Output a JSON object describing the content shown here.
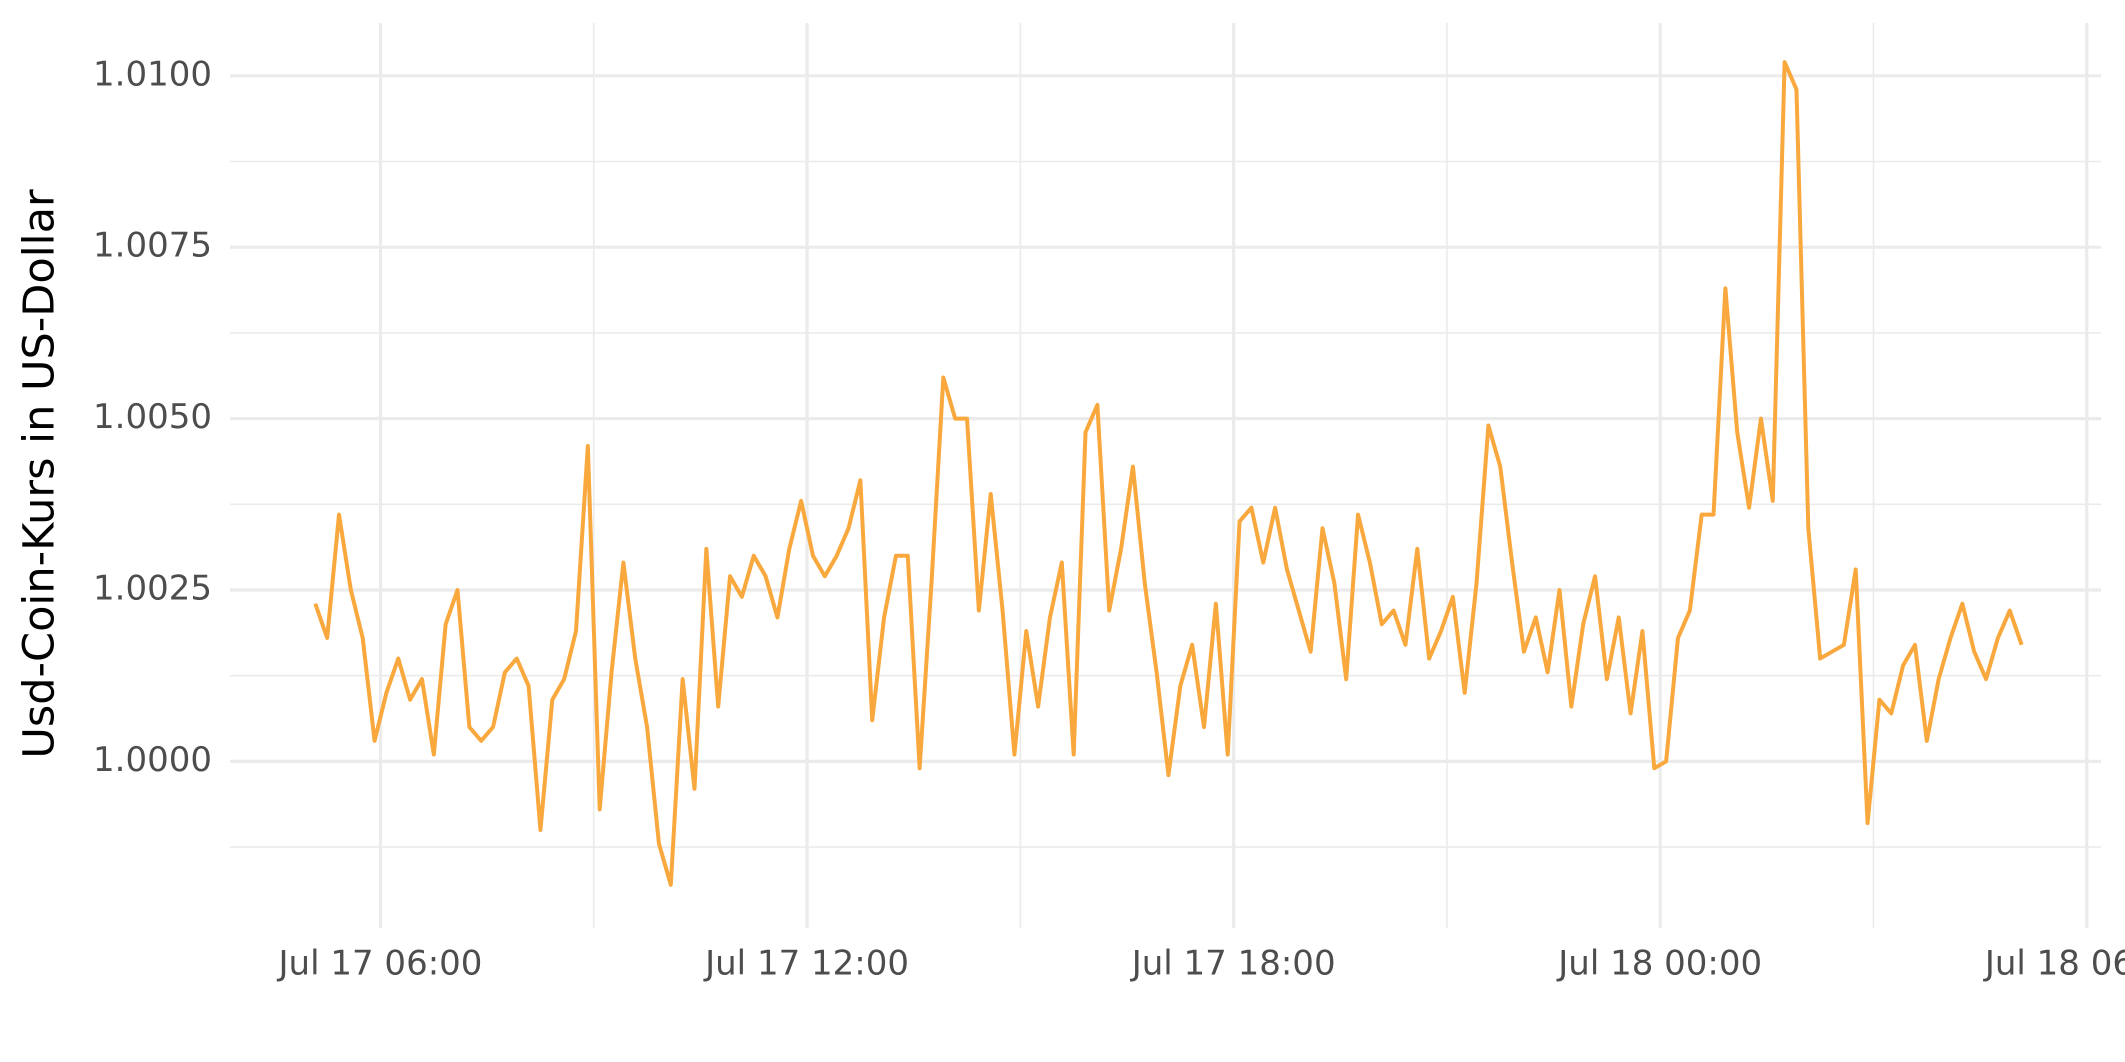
{
  "chart_data": {
    "type": "line",
    "ylabel": "Usd-Coin-Kurs in US-Dollar",
    "x": [
      "Jul 17 05:05",
      "Jul 17 05:15",
      "Jul 17 05:25",
      "Jul 17 05:35",
      "Jul 17 05:45",
      "Jul 17 05:55",
      "Jul 17 06:05",
      "Jul 17 06:15",
      "Jul 17 06:25",
      "Jul 17 06:35",
      "Jul 17 06:45",
      "Jul 17 06:55",
      "Jul 17 07:05",
      "Jul 17 07:15",
      "Jul 17 07:25",
      "Jul 17 07:35",
      "Jul 17 07:45",
      "Jul 17 07:55",
      "Jul 17 08:05",
      "Jul 17 08:15",
      "Jul 17 08:25",
      "Jul 17 08:35",
      "Jul 17 08:45",
      "Jul 17 08:55",
      "Jul 17 09:05",
      "Jul 17 09:15",
      "Jul 17 09:25",
      "Jul 17 09:35",
      "Jul 17 09:45",
      "Jul 17 09:55",
      "Jul 17 10:05",
      "Jul 17 10:15",
      "Jul 17 10:25",
      "Jul 17 10:35",
      "Jul 17 10:45",
      "Jul 17 10:55",
      "Jul 17 11:05",
      "Jul 17 11:15",
      "Jul 17 11:25",
      "Jul 17 11:35",
      "Jul 17 11:45",
      "Jul 17 11:55",
      "Jul 17 12:05",
      "Jul 17 12:15",
      "Jul 17 12:25",
      "Jul 17 12:35",
      "Jul 17 12:45",
      "Jul 17 12:55",
      "Jul 17 13:05",
      "Jul 17 13:15",
      "Jul 17 13:25",
      "Jul 17 13:35",
      "Jul 17 13:45",
      "Jul 17 13:55",
      "Jul 17 14:05",
      "Jul 17 14:15",
      "Jul 17 14:25",
      "Jul 17 14:35",
      "Jul 17 14:45",
      "Jul 17 14:55",
      "Jul 17 15:05",
      "Jul 17 15:15",
      "Jul 17 15:25",
      "Jul 17 15:35",
      "Jul 17 15:45",
      "Jul 17 15:55",
      "Jul 17 16:05",
      "Jul 17 16:15",
      "Jul 17 16:25",
      "Jul 17 16:35",
      "Jul 17 16:45",
      "Jul 17 16:55",
      "Jul 17 17:05",
      "Jul 17 17:15",
      "Jul 17 17:25",
      "Jul 17 17:35",
      "Jul 17 17:45",
      "Jul 17 17:55",
      "Jul 17 18:05",
      "Jul 17 18:15",
      "Jul 17 18:25",
      "Jul 17 18:35",
      "Jul 17 18:45",
      "Jul 17 18:55",
      "Jul 17 19:05",
      "Jul 17 19:15",
      "Jul 17 19:25",
      "Jul 17 19:35",
      "Jul 17 19:45",
      "Jul 17 19:55",
      "Jul 17 20:05",
      "Jul 17 20:15",
      "Jul 17 20:25",
      "Jul 17 20:35",
      "Jul 17 20:45",
      "Jul 17 20:55",
      "Jul 17 21:05",
      "Jul 17 21:15",
      "Jul 17 21:25",
      "Jul 17 21:35",
      "Jul 17 21:45",
      "Jul 17 21:55",
      "Jul 17 22:05",
      "Jul 17 22:15",
      "Jul 17 22:25",
      "Jul 17 22:35",
      "Jul 17 22:45",
      "Jul 17 22:55",
      "Jul 17 23:05",
      "Jul 17 23:15",
      "Jul 17 23:25",
      "Jul 17 23:35",
      "Jul 17 23:45",
      "Jul 17 23:55",
      "Jul 18 00:05",
      "Jul 18 00:15",
      "Jul 18 00:25",
      "Jul 18 00:35",
      "Jul 18 00:45",
      "Jul 18 00:55",
      "Jul 18 01:05",
      "Jul 18 01:15",
      "Jul 18 01:25",
      "Jul 18 01:35",
      "Jul 18 01:45",
      "Jul 18 01:55",
      "Jul 18 02:05",
      "Jul 18 02:15",
      "Jul 18 02:25",
      "Jul 18 02:35",
      "Jul 18 02:45",
      "Jul 18 02:55",
      "Jul 18 03:05",
      "Jul 18 03:15",
      "Jul 18 03:25",
      "Jul 18 03:35",
      "Jul 18 03:45",
      "Jul 18 03:55",
      "Jul 18 04:05",
      "Jul 18 04:15",
      "Jul 18 04:25",
      "Jul 18 04:35",
      "Jul 18 04:45",
      "Jul 18 04:55",
      "Jul 18 05:05"
    ],
    "values": [
      1.0023,
      1.0018,
      1.0036,
      1.0025,
      1.0018,
      1.0003,
      1.001,
      1.0015,
      1.0009,
      1.0012,
      1.0001,
      1.002,
      1.0025,
      1.0005,
      1.0003,
      1.0005,
      1.0013,
      1.0015,
      1.0011,
      0.999,
      1.0009,
      1.0012,
      1.0019,
      1.0046,
      0.9993,
      1.0013,
      1.0029,
      1.0015,
      1.0005,
      0.9988,
      0.9982,
      1.0012,
      0.9996,
      1.0031,
      1.0008,
      1.0027,
      1.0024,
      1.003,
      1.0027,
      1.0021,
      1.0031,
      1.0038,
      1.003,
      1.0027,
      1.003,
      1.0034,
      1.0041,
      1.0006,
      1.0021,
      1.003,
      1.003,
      0.9999,
      1.0026,
      1.0056,
      1.005,
      1.005,
      1.0022,
      1.0039,
      1.0022,
      1.0001,
      1.0019,
      1.0008,
      1.0021,
      1.0029,
      1.0001,
      1.0048,
      1.0052,
      1.0022,
      1.0031,
      1.0043,
      1.0026,
      1.0013,
      0.9998,
      1.0011,
      1.0017,
      1.0005,
      1.0023,
      1.0001,
      1.0035,
      1.0037,
      1.0029,
      1.0037,
      1.0028,
      1.0022,
      1.0016,
      1.0034,
      1.0026,
      1.0012,
      1.0036,
      1.0029,
      1.002,
      1.0022,
      1.0017,
      1.0031,
      1.0015,
      1.0019,
      1.0024,
      1.001,
      1.0026,
      1.0049,
      1.0043,
      1.0029,
      1.0016,
      1.0021,
      1.0013,
      1.0025,
      1.0008,
      1.002,
      1.0027,
      1.0012,
      1.0021,
      1.0007,
      1.0019,
      0.9999,
      1.0,
      1.0018,
      1.0022,
      1.0036,
      1.0036,
      1.0069,
      1.0048,
      1.0037,
      1.005,
      1.0038,
      1.0102,
      1.0098,
      1.0034,
      1.0015,
      1.0016,
      1.0017,
      1.0028,
      0.9991,
      1.0009,
      1.0007,
      1.0014,
      1.0017,
      1.0003,
      1.0012,
      1.0018,
      1.0023,
      1.0016,
      1.0012,
      1.0018,
      1.0022,
      1.0017
    ],
    "color": "#f9a83e",
    "xlim": [
      "Jul 17 03:53",
      "Jul 18 06:12"
    ],
    "xticks": [
      "Jul 17 06:00",
      "Jul 17 12:00",
      "Jul 17 18:00",
      "Jul 18 00:00",
      "Jul 18 06:00"
    ],
    "ylim": [
      0.99757,
      1.01077
    ],
    "yticks": [
      {
        "value": 1.0,
        "label": "1.0000"
      },
      {
        "value": 1.0025,
        "label": "1.0025"
      },
      {
        "value": 1.005,
        "label": "1.0050"
      },
      {
        "value": 1.0075,
        "label": "1.0075"
      },
      {
        "value": 1.01,
        "label": "1.0100"
      }
    ],
    "grid": true
  }
}
